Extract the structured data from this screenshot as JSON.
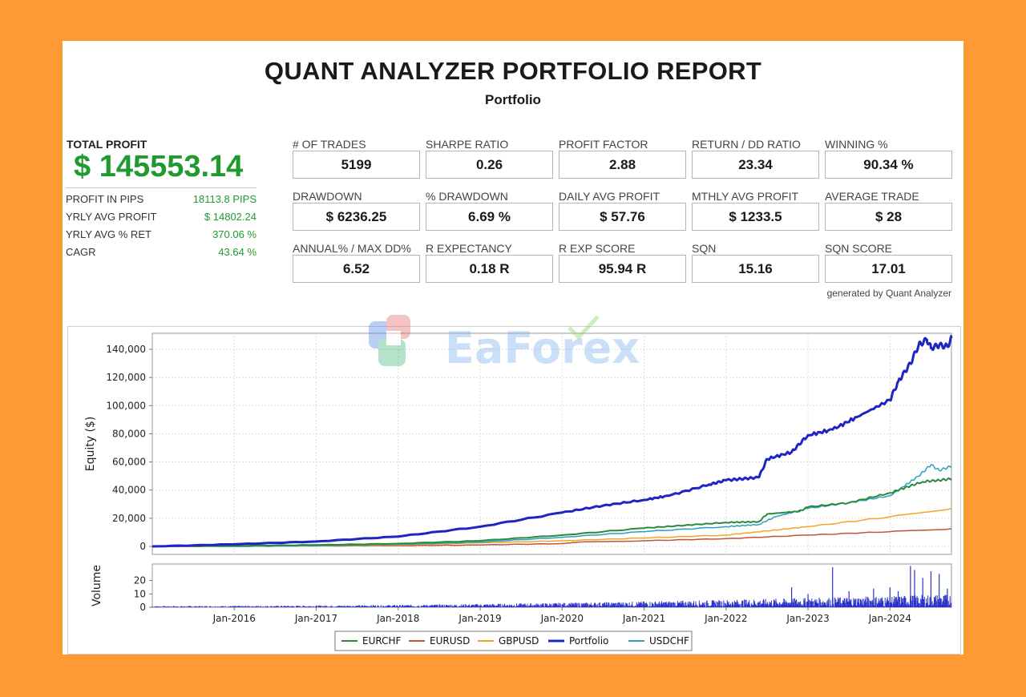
{
  "report": {
    "title": "QUANT ANALYZER PORTFOLIO REPORT",
    "subtitle": "Portfolio",
    "total_profit_label": "TOTAL PROFIT",
    "total_profit_value": "$ 145553.14",
    "left_stats": [
      {
        "label": "PROFIT IN PIPS",
        "value": "18113.8 PIPS"
      },
      {
        "label": "YRLY AVG PROFIT",
        "value": "$ 14802.24"
      },
      {
        "label": "YRLY AVG % RET",
        "value": "370.06 %"
      },
      {
        "label": "CAGR",
        "value": "43.64 %"
      }
    ],
    "metrics": [
      [
        {
          "label": "# OF TRADES",
          "value": "5199"
        },
        {
          "label": "SHARPE RATIO",
          "value": "0.26"
        },
        {
          "label": "PROFIT FACTOR",
          "value": "2.88"
        },
        {
          "label": "RETURN / DD RATIO",
          "value": "23.34"
        },
        {
          "label": "WINNING %",
          "value": "90.34 %"
        }
      ],
      [
        {
          "label": "DRAWDOWN",
          "value": "$ 6236.25"
        },
        {
          "label": "% DRAWDOWN",
          "value": "6.69 %"
        },
        {
          "label": "DAILY AVG PROFIT",
          "value": "$ 57.76"
        },
        {
          "label": "MTHLY AVG PROFIT",
          "value": "$ 1233.5"
        },
        {
          "label": "AVERAGE TRADE",
          "value": "$ 28"
        }
      ],
      [
        {
          "label": "ANNUAL% / MAX DD%",
          "value": "6.52"
        },
        {
          "label": "R EXPECTANCY",
          "value": "0.18 R"
        },
        {
          "label": "R EXP SCORE",
          "value": "95.94 R"
        },
        {
          "label": "SQN",
          "value": "15.16"
        },
        {
          "label": "SQN SCORE",
          "value": "17.01"
        }
      ]
    ],
    "generated_by": "generated by Quant Analyzer",
    "watermark": "EaForex"
  },
  "chart_data": {
    "type": "line",
    "ylabel": "Equity ($)",
    "ylim": [
      0,
      148000
    ],
    "yticks": [
      0,
      20000,
      40000,
      60000,
      80000,
      100000,
      120000,
      140000
    ],
    "ytick_labels": [
      "0",
      "20,000",
      "40,000",
      "60,000",
      "80,000",
      "100,000",
      "120,000",
      "140,000"
    ],
    "x_range": [
      2015.0,
      2024.75
    ],
    "xticks": [
      2016,
      2017,
      2018,
      2019,
      2020,
      2021,
      2022,
      2023,
      2024
    ],
    "xtick_labels": [
      "Jan-2016",
      "Jan-2017",
      "Jan-2018",
      "Jan-2019",
      "Jan-2020",
      "Jan-2021",
      "Jan-2022",
      "Jan-2023",
      "Jan-2024"
    ],
    "grid": true,
    "legend_position": "bottom",
    "series": [
      {
        "name": "EURCHF",
        "color": "#2a8a3a",
        "width": 2,
        "points": [
          [
            2015.0,
            0
          ],
          [
            2016.0,
            500
          ],
          [
            2017.0,
            1000
          ],
          [
            2018.0,
            2000
          ],
          [
            2019.0,
            4000
          ],
          [
            2020.0,
            8000
          ],
          [
            2021.0,
            13000
          ],
          [
            2021.5,
            15000
          ],
          [
            2022.0,
            17000
          ],
          [
            2022.4,
            17500
          ],
          [
            2022.5,
            23000
          ],
          [
            2022.9,
            25000
          ],
          [
            2023.0,
            28000
          ],
          [
            2023.5,
            31000
          ],
          [
            2024.0,
            38000
          ],
          [
            2024.4,
            46000
          ],
          [
            2024.6,
            47000
          ],
          [
            2024.75,
            48000
          ]
        ]
      },
      {
        "name": "EURUSD",
        "color": "#c0553a",
        "width": 1.5,
        "points": [
          [
            2015.0,
            0
          ],
          [
            2016.0,
            0
          ],
          [
            2017.0,
            300
          ],
          [
            2018.0,
            500
          ],
          [
            2019.0,
            1000
          ],
          [
            2020.0,
            2000
          ],
          [
            2020.2,
            3000
          ],
          [
            2021.0,
            4000
          ],
          [
            2022.0,
            5500
          ],
          [
            2023.0,
            8000
          ],
          [
            2024.0,
            10500
          ],
          [
            2024.75,
            12500
          ]
        ]
      },
      {
        "name": "GBPUSD",
        "color": "#f0a52a",
        "width": 1.5,
        "points": [
          [
            2015.0,
            0
          ],
          [
            2016.0,
            0
          ],
          [
            2017.0,
            500
          ],
          [
            2018.0,
            1000
          ],
          [
            2019.0,
            2500
          ],
          [
            2020.0,
            4000
          ],
          [
            2021.0,
            6000
          ],
          [
            2022.0,
            8000
          ],
          [
            2022.5,
            11000
          ],
          [
            2023.0,
            14000
          ],
          [
            2024.0,
            21000
          ],
          [
            2024.75,
            27000
          ]
        ]
      },
      {
        "name": "Portfolio",
        "color": "#1f25c0",
        "width": 3,
        "points": [
          [
            2015.0,
            0
          ],
          [
            2016.0,
            1500
          ],
          [
            2017.0,
            3500
          ],
          [
            2018.0,
            7000
          ],
          [
            2019.0,
            14000
          ],
          [
            2020.0,
            24000
          ],
          [
            2020.5,
            29000
          ],
          [
            2021.0,
            33000
          ],
          [
            2021.3,
            36000
          ],
          [
            2021.8,
            44000
          ],
          [
            2022.0,
            47000
          ],
          [
            2022.4,
            49000
          ],
          [
            2022.5,
            62000
          ],
          [
            2022.8,
            67000
          ],
          [
            2023.0,
            79000
          ],
          [
            2023.3,
            83000
          ],
          [
            2023.6,
            92000
          ],
          [
            2024.0,
            104000
          ],
          [
            2024.1,
            117000
          ],
          [
            2024.25,
            130000
          ],
          [
            2024.35,
            143000
          ],
          [
            2024.45,
            147000
          ],
          [
            2024.5,
            141000
          ],
          [
            2024.6,
            143000
          ],
          [
            2024.7,
            142000
          ],
          [
            2024.75,
            148000
          ]
        ]
      },
      {
        "name": "USDCHF",
        "color": "#2aa0c0",
        "width": 1.5,
        "points": [
          [
            2015.0,
            0
          ],
          [
            2016.0,
            0
          ],
          [
            2017.0,
            500
          ],
          [
            2018.0,
            1500
          ],
          [
            2019.0,
            3000
          ],
          [
            2020.0,
            6500
          ],
          [
            2021.0,
            10500
          ],
          [
            2022.0,
            14000
          ],
          [
            2022.4,
            15500
          ],
          [
            2022.6,
            21000
          ],
          [
            2023.0,
            27000
          ],
          [
            2023.5,
            31000
          ],
          [
            2024.0,
            36000
          ],
          [
            2024.35,
            50000
          ],
          [
            2024.5,
            58000
          ],
          [
            2024.6,
            54000
          ],
          [
            2024.75,
            57000
          ]
        ]
      }
    ],
    "volume": {
      "ylabel": "Volume",
      "ylim": [
        0,
        30
      ],
      "yticks": [
        0,
        10,
        20
      ],
      "ytick_labels": [
        "0",
        "10",
        "20"
      ],
      "spikes": [
        [
          2022.8,
          15
        ],
        [
          2023.0,
          10
        ],
        [
          2023.3,
          30
        ],
        [
          2023.5,
          12
        ],
        [
          2023.8,
          14
        ],
        [
          2024.0,
          15
        ],
        [
          2024.1,
          12
        ],
        [
          2024.25,
          31
        ],
        [
          2024.3,
          28
        ],
        [
          2024.4,
          22
        ],
        [
          2024.5,
          27
        ],
        [
          2024.6,
          25
        ],
        [
          2024.7,
          14
        ]
      ]
    }
  }
}
